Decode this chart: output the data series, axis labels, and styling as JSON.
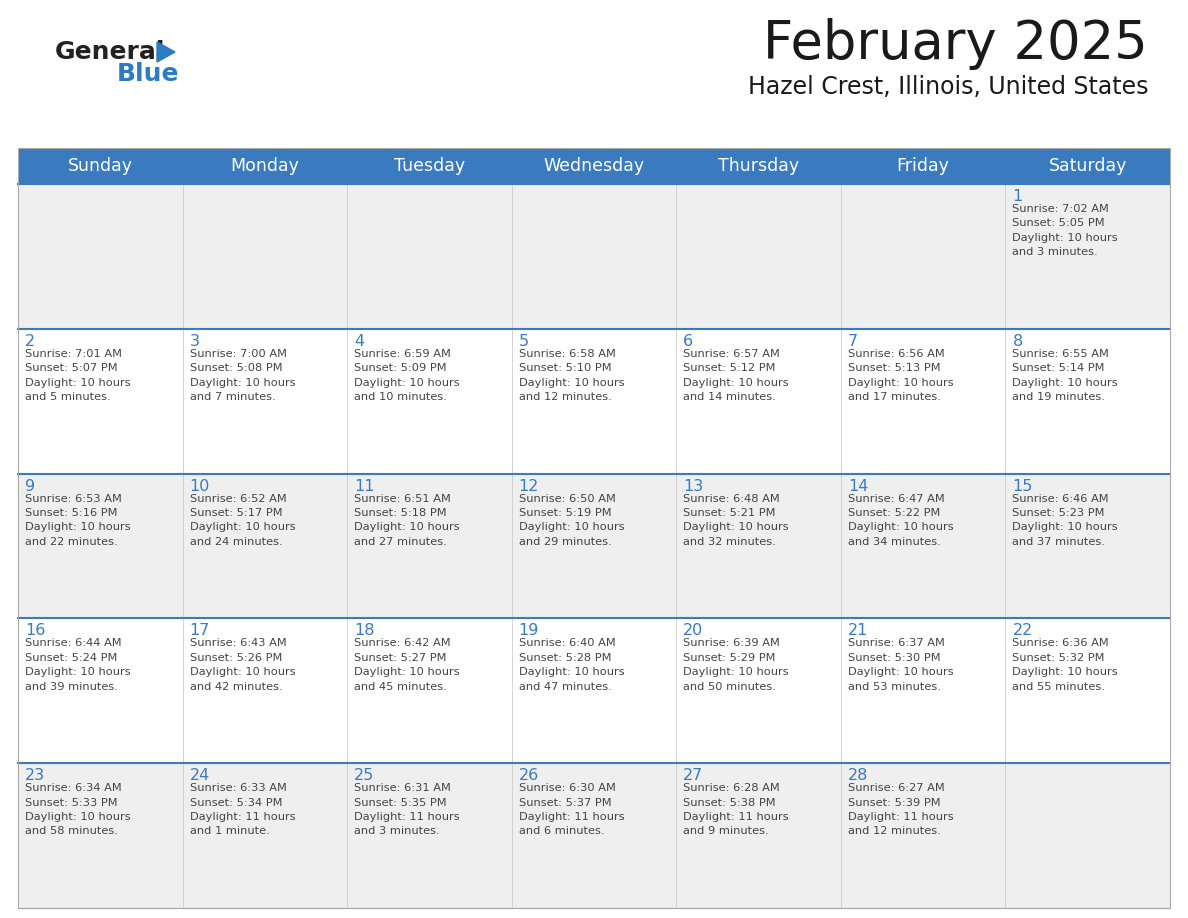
{
  "title": "February 2025",
  "subtitle": "Hazel Crest, Illinois, United States",
  "header_bg": "#3a7bbf",
  "header_text_color": "#ffffff",
  "cell_bg_gray": "#efefef",
  "cell_bg_white": "#ffffff",
  "row_divider_color": "#3a7bbf",
  "col_divider_color": "#cccccc",
  "day_number_color": "#3a7bbf",
  "info_text_color": "#444444",
  "days_of_week": [
    "Sunday",
    "Monday",
    "Tuesday",
    "Wednesday",
    "Thursday",
    "Friday",
    "Saturday"
  ],
  "logo_general_color": "#222222",
  "logo_blue_color": "#2b7cc1",
  "title_color": "#1a1a1a",
  "subtitle_color": "#1a1a1a",
  "calendar_data": [
    [
      {
        "day": "",
        "info": ""
      },
      {
        "day": "",
        "info": ""
      },
      {
        "day": "",
        "info": ""
      },
      {
        "day": "",
        "info": ""
      },
      {
        "day": "",
        "info": ""
      },
      {
        "day": "",
        "info": ""
      },
      {
        "day": "1",
        "info": "Sunrise: 7:02 AM\nSunset: 5:05 PM\nDaylight: 10 hours\nand 3 minutes."
      }
    ],
    [
      {
        "day": "2",
        "info": "Sunrise: 7:01 AM\nSunset: 5:07 PM\nDaylight: 10 hours\nand 5 minutes."
      },
      {
        "day": "3",
        "info": "Sunrise: 7:00 AM\nSunset: 5:08 PM\nDaylight: 10 hours\nand 7 minutes."
      },
      {
        "day": "4",
        "info": "Sunrise: 6:59 AM\nSunset: 5:09 PM\nDaylight: 10 hours\nand 10 minutes."
      },
      {
        "day": "5",
        "info": "Sunrise: 6:58 AM\nSunset: 5:10 PM\nDaylight: 10 hours\nand 12 minutes."
      },
      {
        "day": "6",
        "info": "Sunrise: 6:57 AM\nSunset: 5:12 PM\nDaylight: 10 hours\nand 14 minutes."
      },
      {
        "day": "7",
        "info": "Sunrise: 6:56 AM\nSunset: 5:13 PM\nDaylight: 10 hours\nand 17 minutes."
      },
      {
        "day": "8",
        "info": "Sunrise: 6:55 AM\nSunset: 5:14 PM\nDaylight: 10 hours\nand 19 minutes."
      }
    ],
    [
      {
        "day": "9",
        "info": "Sunrise: 6:53 AM\nSunset: 5:16 PM\nDaylight: 10 hours\nand 22 minutes."
      },
      {
        "day": "10",
        "info": "Sunrise: 6:52 AM\nSunset: 5:17 PM\nDaylight: 10 hours\nand 24 minutes."
      },
      {
        "day": "11",
        "info": "Sunrise: 6:51 AM\nSunset: 5:18 PM\nDaylight: 10 hours\nand 27 minutes."
      },
      {
        "day": "12",
        "info": "Sunrise: 6:50 AM\nSunset: 5:19 PM\nDaylight: 10 hours\nand 29 minutes."
      },
      {
        "day": "13",
        "info": "Sunrise: 6:48 AM\nSunset: 5:21 PM\nDaylight: 10 hours\nand 32 minutes."
      },
      {
        "day": "14",
        "info": "Sunrise: 6:47 AM\nSunset: 5:22 PM\nDaylight: 10 hours\nand 34 minutes."
      },
      {
        "day": "15",
        "info": "Sunrise: 6:46 AM\nSunset: 5:23 PM\nDaylight: 10 hours\nand 37 minutes."
      }
    ],
    [
      {
        "day": "16",
        "info": "Sunrise: 6:44 AM\nSunset: 5:24 PM\nDaylight: 10 hours\nand 39 minutes."
      },
      {
        "day": "17",
        "info": "Sunrise: 6:43 AM\nSunset: 5:26 PM\nDaylight: 10 hours\nand 42 minutes."
      },
      {
        "day": "18",
        "info": "Sunrise: 6:42 AM\nSunset: 5:27 PM\nDaylight: 10 hours\nand 45 minutes."
      },
      {
        "day": "19",
        "info": "Sunrise: 6:40 AM\nSunset: 5:28 PM\nDaylight: 10 hours\nand 47 minutes."
      },
      {
        "day": "20",
        "info": "Sunrise: 6:39 AM\nSunset: 5:29 PM\nDaylight: 10 hours\nand 50 minutes."
      },
      {
        "day": "21",
        "info": "Sunrise: 6:37 AM\nSunset: 5:30 PM\nDaylight: 10 hours\nand 53 minutes."
      },
      {
        "day": "22",
        "info": "Sunrise: 6:36 AM\nSunset: 5:32 PM\nDaylight: 10 hours\nand 55 minutes."
      }
    ],
    [
      {
        "day": "23",
        "info": "Sunrise: 6:34 AM\nSunset: 5:33 PM\nDaylight: 10 hours\nand 58 minutes."
      },
      {
        "day": "24",
        "info": "Sunrise: 6:33 AM\nSunset: 5:34 PM\nDaylight: 11 hours\nand 1 minute."
      },
      {
        "day": "25",
        "info": "Sunrise: 6:31 AM\nSunset: 5:35 PM\nDaylight: 11 hours\nand 3 minutes."
      },
      {
        "day": "26",
        "info": "Sunrise: 6:30 AM\nSunset: 5:37 PM\nDaylight: 11 hours\nand 6 minutes."
      },
      {
        "day": "27",
        "info": "Sunrise: 6:28 AM\nSunset: 5:38 PM\nDaylight: 11 hours\nand 9 minutes."
      },
      {
        "day": "28",
        "info": "Sunrise: 6:27 AM\nSunset: 5:39 PM\nDaylight: 11 hours\nand 12 minutes."
      },
      {
        "day": "",
        "info": ""
      }
    ]
  ]
}
